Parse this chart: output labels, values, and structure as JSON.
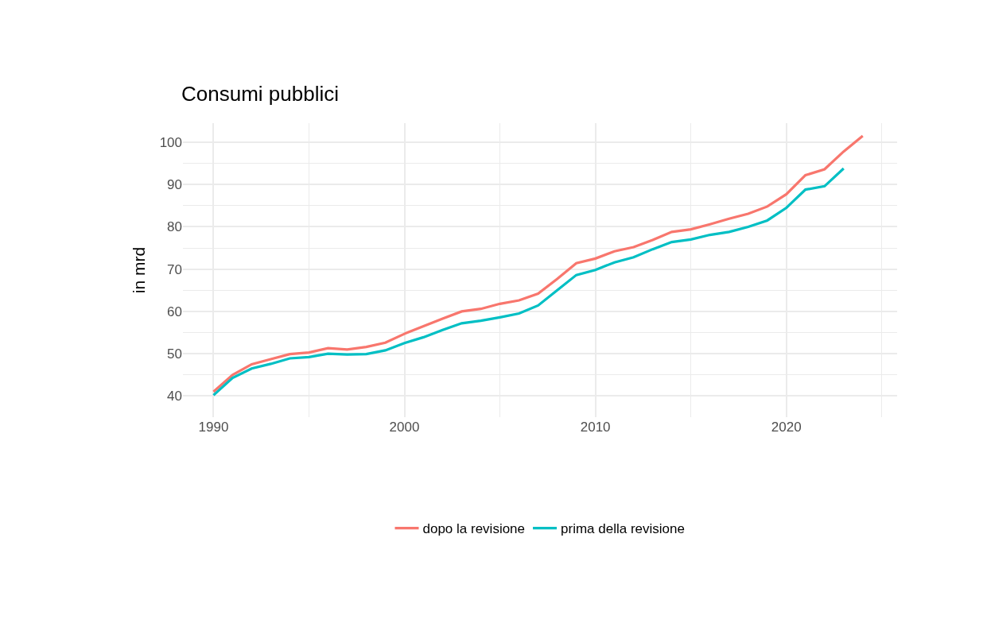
{
  "chart_data": {
    "type": "line",
    "title": "Consumi pubblici",
    "ylabel": "in mrd",
    "x": [
      1990,
      1991,
      1992,
      1993,
      1994,
      1995,
      1996,
      1997,
      1998,
      1999,
      2000,
      2001,
      2002,
      2003,
      2004,
      2005,
      2006,
      2007,
      2008,
      2009,
      2010,
      2011,
      2012,
      2013,
      2014,
      2015,
      2016,
      2017,
      2018,
      2019,
      2020,
      2021,
      2022,
      2023,
      2024
    ],
    "series": [
      {
        "name": "dopo la revisione",
        "color": "#f8766d",
        "values": [
          41,
          45,
          47.5,
          48.7,
          49.9,
          50.3,
          51.3,
          51.0,
          51.6,
          52.6,
          54.7,
          56.5,
          58.3,
          60.0,
          60.6,
          61.8,
          62.6,
          64.2,
          67.7,
          71.4,
          72.5,
          74.2,
          75.2,
          76.9,
          78.8,
          79.4,
          80.6,
          81.9,
          83.1,
          84.8,
          87.7,
          92.2,
          93.6,
          97.8,
          101.5
        ]
      },
      {
        "name": "prima della revisione",
        "color": "#00bfc4",
        "values": [
          40.2,
          44.3,
          46.5,
          47.6,
          48.9,
          49.2,
          50.0,
          49.8,
          49.9,
          50.8,
          52.5,
          53.9,
          55.6,
          57.2,
          57.8,
          58.6,
          59.5,
          61.4,
          65.0,
          68.6,
          69.8,
          71.6,
          72.8,
          74.7,
          76.4,
          77.0,
          78.1,
          78.8,
          80.0,
          81.5,
          84.5,
          88.8,
          89.6,
          93.8,
          null
        ]
      }
    ],
    "xlim": [
      1988.4,
      2025.8
    ],
    "ylim": [
      35,
      104.5
    ],
    "xticks": [
      1990,
      {
        "value": 1995,
        "label": null
      },
      2000,
      {
        "value": 2005,
        "label": null
      },
      2010,
      {
        "value": 2015,
        "label": null
      },
      2020,
      {
        "value": 2025,
        "label": null
      }
    ],
    "yticks": [
      40,
      {
        "value": 45,
        "label": null
      },
      50,
      {
        "value": 55,
        "label": null
      },
      60,
      {
        "value": 65,
        "label": null
      },
      70,
      {
        "value": 75,
        "label": null
      },
      80,
      {
        "value": 85,
        "label": null
      },
      90,
      {
        "value": 95,
        "label": null
      },
      100
    ],
    "grid": true,
    "legend": "bottom",
    "line_style": "solid",
    "marker": "none"
  }
}
